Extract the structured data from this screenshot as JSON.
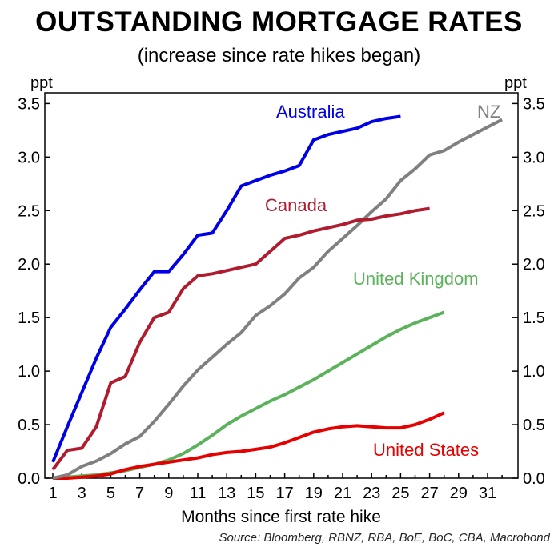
{
  "chart_data": {
    "type": "line",
    "title": "OUTSTANDING MORTGAGE RATES",
    "subtitle": "(increase since rate hikes began)",
    "xlabel": "Months since first rate hike",
    "ylabel_left": "ppt",
    "ylabel_right": "ppt",
    "source": "Source: Bloomberg, RBNZ, RBA, BoE, BoC, CBA, Macrobond",
    "xlim": [
      1,
      32.5
    ],
    "ylim": [
      0,
      3.6
    ],
    "x_ticks": [
      "1",
      "3",
      "5",
      "7",
      "9",
      "11",
      "13",
      "15",
      "17",
      "19",
      "21",
      "23",
      "25",
      "27",
      "29",
      "31"
    ],
    "y_ticks": [
      "0.0",
      "0.5",
      "1.0",
      "1.5",
      "2.0",
      "2.5",
      "3.0",
      "3.5"
    ],
    "grid": false,
    "series": [
      {
        "name": "Australia",
        "color": "#0000e6",
        "x": [
          1,
          2,
          3,
          4,
          5,
          6,
          7,
          8,
          9,
          10,
          11,
          12,
          13,
          14,
          15,
          16,
          17,
          18,
          19,
          20,
          21,
          22,
          23,
          24,
          25
        ],
        "y": [
          0.15,
          0.48,
          0.8,
          1.12,
          1.41,
          1.58,
          1.76,
          1.93,
          1.93,
          2.09,
          2.27,
          2.29,
          2.5,
          2.73,
          2.78,
          2.83,
          2.87,
          2.92,
          3.16,
          3.21,
          3.24,
          3.27,
          3.33,
          3.36,
          3.38
        ]
      },
      {
        "name": "NZ",
        "color": "#808080",
        "x": [
          1,
          2,
          3,
          4,
          5,
          6,
          7,
          8,
          9,
          10,
          11,
          12,
          13,
          14,
          15,
          16,
          17,
          18,
          19,
          20,
          21,
          22,
          23,
          24,
          25,
          26,
          27,
          28,
          29,
          30,
          31,
          32
        ],
        "y": [
          0.0,
          0.03,
          0.11,
          0.16,
          0.23,
          0.32,
          0.39,
          0.53,
          0.69,
          0.86,
          1.01,
          1.13,
          1.25,
          1.36,
          1.52,
          1.61,
          1.72,
          1.87,
          1.97,
          2.12,
          2.24,
          2.36,
          2.49,
          2.61,
          2.78,
          2.89,
          3.02,
          3.06,
          3.14,
          3.21,
          3.28,
          3.35
        ]
      },
      {
        "name": "Canada",
        "color": "#b01c2e",
        "x": [
          1,
          2,
          3,
          4,
          5,
          6,
          7,
          8,
          9,
          10,
          11,
          12,
          13,
          14,
          15,
          16,
          17,
          18,
          19,
          20,
          21,
          22,
          23,
          24,
          25,
          26,
          27
        ],
        "y": [
          0.08,
          0.26,
          0.28,
          0.48,
          0.89,
          0.95,
          1.27,
          1.5,
          1.55,
          1.77,
          1.89,
          1.91,
          1.94,
          1.97,
          2.0,
          2.12,
          2.24,
          2.27,
          2.31,
          2.34,
          2.37,
          2.41,
          2.42,
          2.45,
          2.47,
          2.5,
          2.52
        ]
      },
      {
        "name": "United Kingdom",
        "color": "#5ab25a",
        "x": [
          1,
          2,
          3,
          4,
          5,
          6,
          7,
          8,
          9,
          10,
          11,
          12,
          13,
          14,
          15,
          16,
          17,
          18,
          19,
          20,
          21,
          22,
          23,
          24,
          25,
          26,
          27,
          28
        ],
        "y": [
          0.0,
          0.01,
          0.02,
          0.03,
          0.05,
          0.07,
          0.1,
          0.13,
          0.17,
          0.23,
          0.31,
          0.4,
          0.5,
          0.58,
          0.65,
          0.72,
          0.78,
          0.85,
          0.92,
          1.0,
          1.08,
          1.16,
          1.24,
          1.32,
          1.39,
          1.45,
          1.5,
          1.55
        ]
      },
      {
        "name": "United States",
        "color": "#e60000",
        "x": [
          1,
          2,
          3,
          4,
          5,
          6,
          7,
          8,
          9,
          10,
          11,
          12,
          13,
          14,
          15,
          16,
          17,
          18,
          19,
          20,
          21,
          22,
          23,
          24,
          25,
          26,
          27,
          28
        ],
        "y": [
          0.0,
          0.0,
          0.01,
          0.02,
          0.04,
          0.08,
          0.11,
          0.13,
          0.15,
          0.17,
          0.19,
          0.22,
          0.24,
          0.25,
          0.27,
          0.29,
          0.33,
          0.38,
          0.43,
          0.46,
          0.48,
          0.49,
          0.48,
          0.47,
          0.47,
          0.5,
          0.55,
          0.61
        ]
      }
    ]
  }
}
